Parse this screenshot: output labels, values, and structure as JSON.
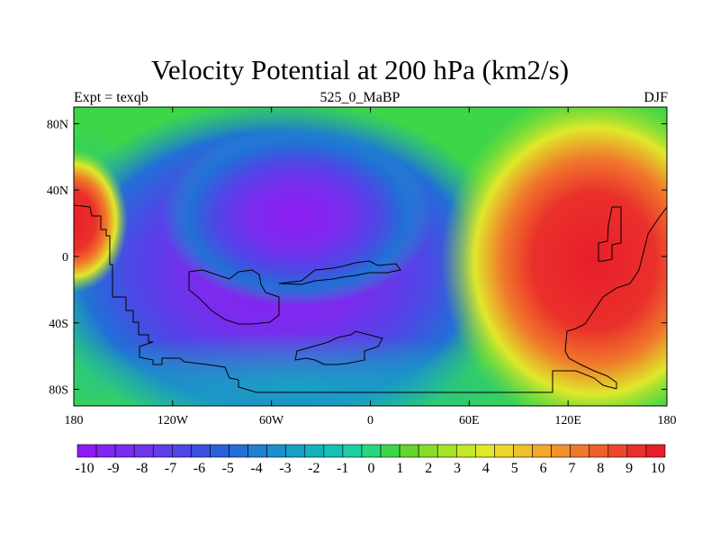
{
  "title": "Velocity Potential at 200 hPa (km2/s)",
  "subtitle_left": "Expt = texqb",
  "subtitle_center": "525_0_MaBP",
  "subtitle_right": "DJF",
  "lon_ticks": [
    {
      "value": -180,
      "label": "180"
    },
    {
      "value": -120,
      "label": "120W"
    },
    {
      "value": -60,
      "label": "60W"
    },
    {
      "value": 0,
      "label": "0"
    },
    {
      "value": 60,
      "label": "60E"
    },
    {
      "value": 120,
      "label": "120E"
    },
    {
      "value": 180,
      "label": "180"
    }
  ],
  "lat_ticks": [
    {
      "value": 80,
      "label": "80N"
    },
    {
      "value": 40,
      "label": "40N"
    },
    {
      "value": 0,
      "label": "0"
    },
    {
      "value": -40,
      "label": "40S"
    },
    {
      "value": -80,
      "label": "80S"
    }
  ],
  "lon_range": [
    -180,
    180
  ],
  "lat_range": [
    -90,
    90
  ],
  "colorbar": {
    "labels": [
      "-10",
      "-9",
      "-8",
      "-7",
      "-6",
      "-5",
      "-4",
      "-3",
      "-2",
      "-1",
      "0",
      "1",
      "2",
      "3",
      "4",
      "5",
      "6",
      "7",
      "8",
      "9",
      "10"
    ],
    "colors": [
      "#8e1cf2",
      "#8424f0",
      "#7a2cee",
      "#6e35ec",
      "#603ee9",
      "#4f46e6",
      "#3c50e0",
      "#2a60db",
      "#2170d6",
      "#1f80d0",
      "#1a90ca",
      "#17a0c3",
      "#15b0bc",
      "#16c0b5",
      "#1fcfa4",
      "#28d680",
      "#3ed649",
      "#62d62c",
      "#86dd29",
      "#a6e328",
      "#c5e828",
      "#e0e82a",
      "#ecd62a",
      "#f1c02b",
      "#f2a82b",
      "#f2902b",
      "#f0782b",
      "#ee602b",
      "#ec482b",
      "#ea302b",
      "#e81e2a"
    ]
  },
  "field_centers": [
    {
      "lon": -55,
      "lat": -5,
      "value": -10
    },
    {
      "lon": 160,
      "lat": 10,
      "value": 10
    },
    {
      "lon": -178,
      "lat": 30,
      "value": 10
    }
  ]
}
